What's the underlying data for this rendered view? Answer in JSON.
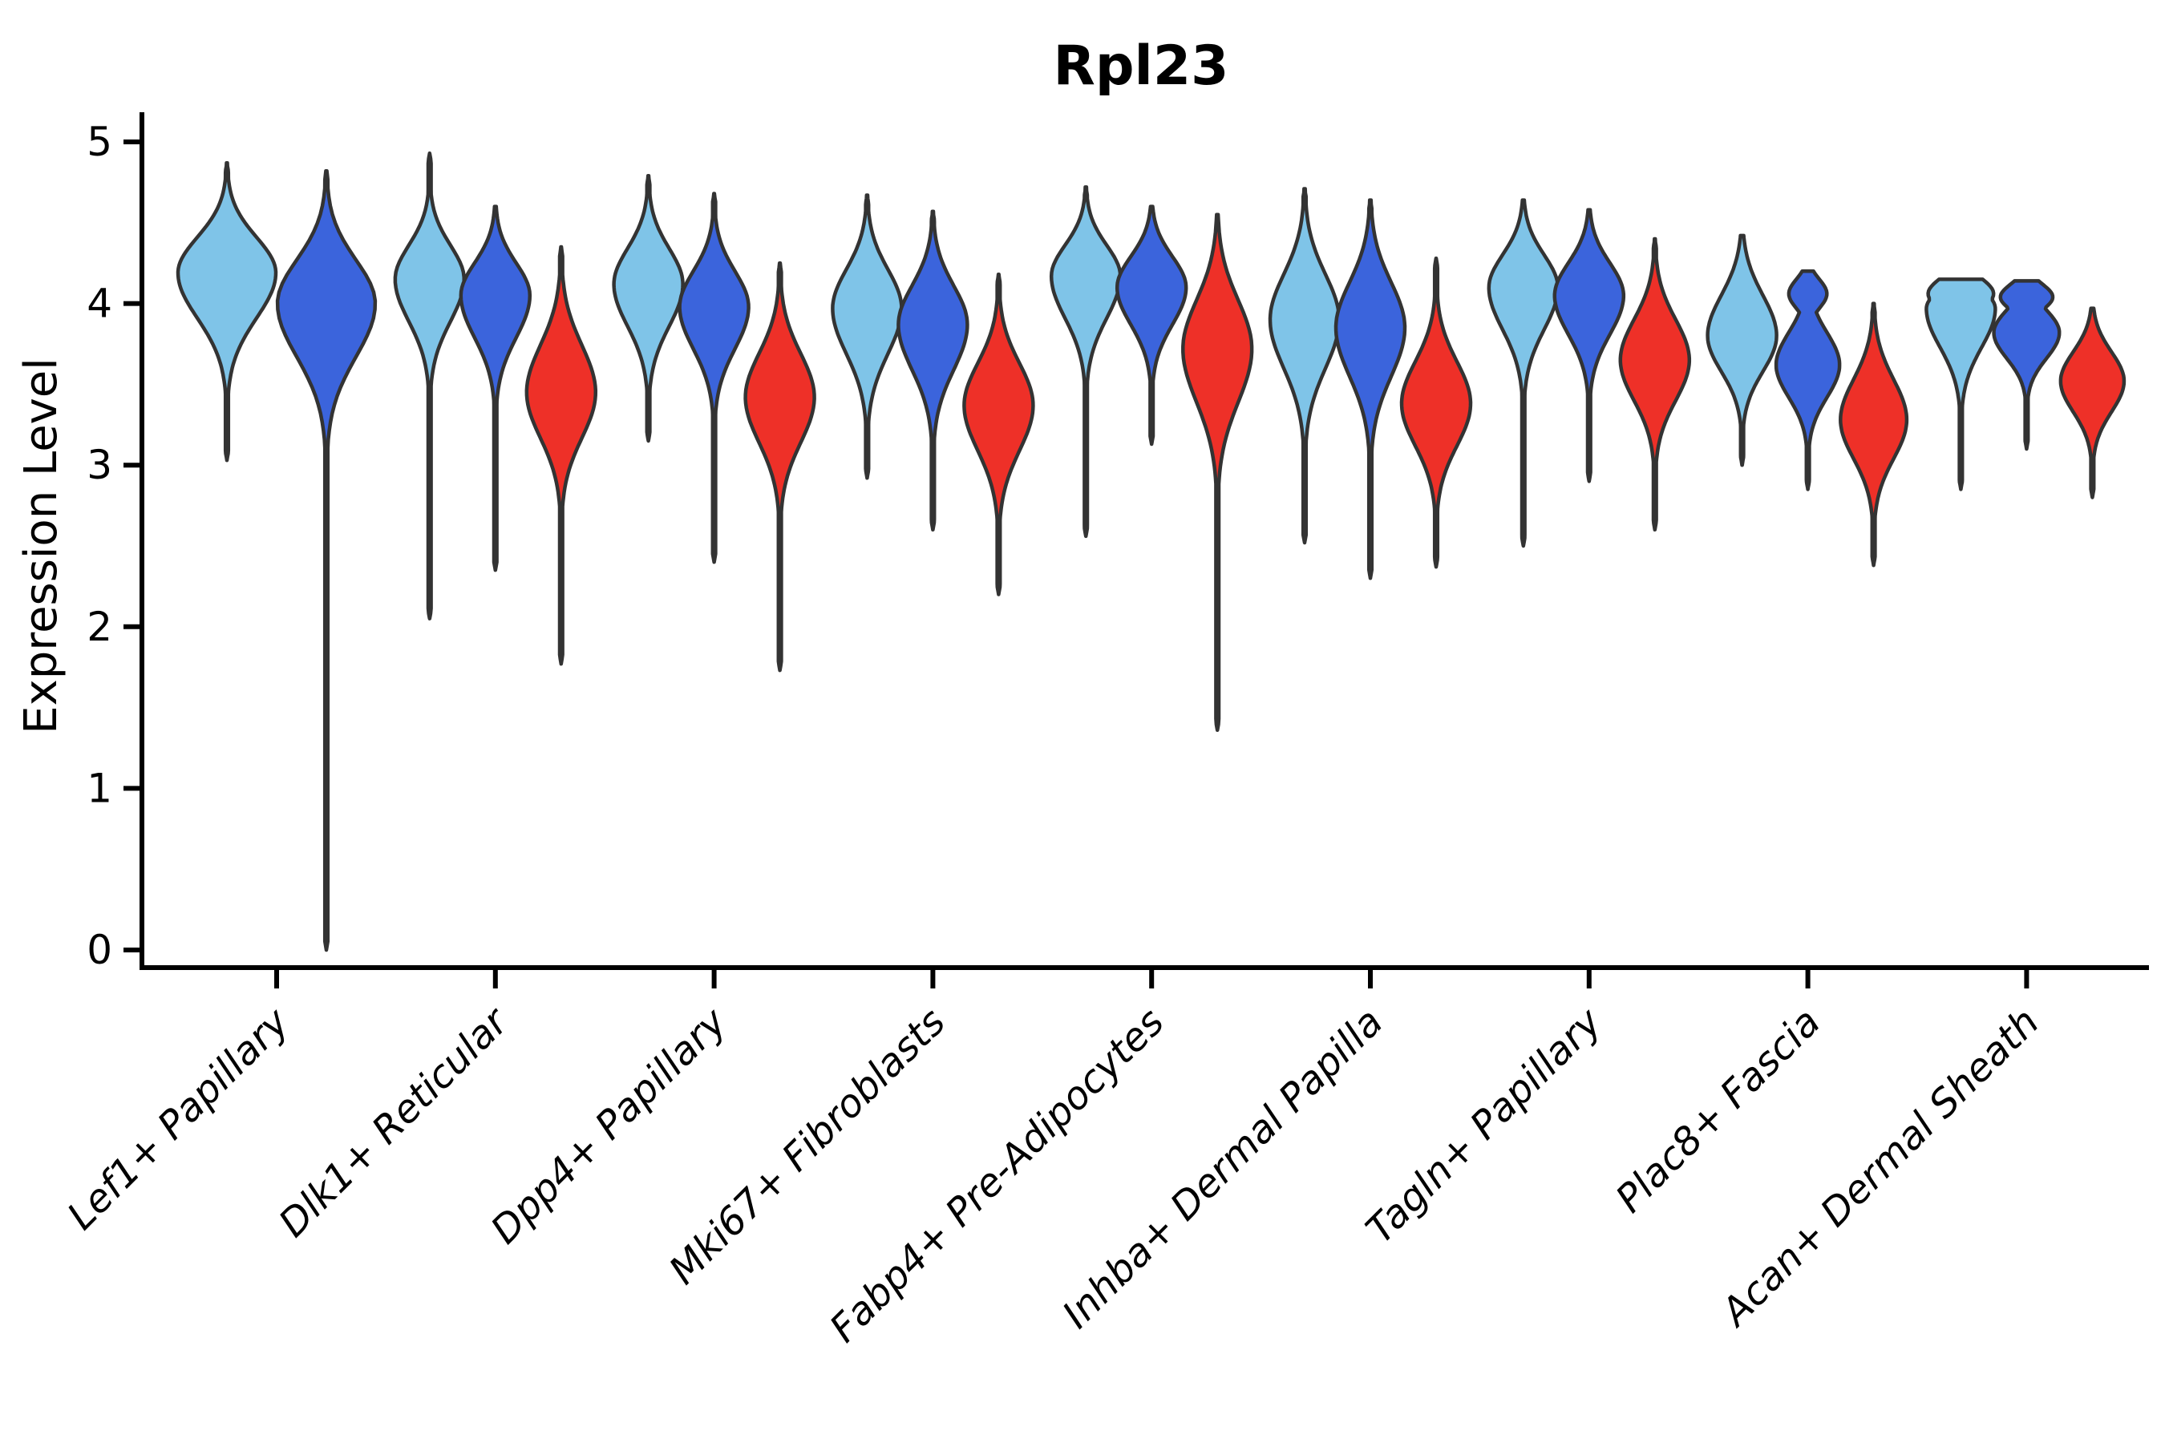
{
  "figure": {
    "title": "Rpl23",
    "ylabel": "Expression Level"
  },
  "colors": {
    "lightblue": "#7FC4E8",
    "darkblue": "#3B64DC",
    "red": "#EE3028",
    "outline": "#333333",
    "axis": "#000000",
    "background": "#ffffff"
  },
  "chart_data": {
    "type": "violin",
    "title": "Rpl23",
    "ylabel": "Expression Level",
    "xlabel": "",
    "grid": false,
    "legend": "none",
    "yticks": [
      0,
      1,
      2,
      3,
      4,
      5
    ],
    "ylim": [
      -0.1,
      5.2
    ],
    "categories": [
      "Lef1+ Papillary",
      "Dlk1+ Reticular",
      "Dpp4+ Papillary",
      "Mki67+ Fibroblasts",
      "Fabp4+ Pre-Adipocytes",
      "Inhba+ Dermal Papilla",
      "Tagln+ Papillary",
      "Plac8+ Fascia",
      "Acan+ Dermal Sheath"
    ],
    "series": [
      "lightblue",
      "darkblue",
      "red"
    ],
    "violins": [
      {
        "category": "Lef1+ Papillary",
        "series": "lightblue",
        "min": 3.03,
        "max": 4.87,
        "peak": 4.19,
        "sigma_up": 0.22,
        "sigma_down": 0.28,
        "rel_width": 1.0
      },
      {
        "category": "Lef1+ Papillary",
        "series": "darkblue",
        "min": 0.0,
        "max": 4.82,
        "peak": 4.0,
        "sigma_up": 0.27,
        "sigma_down": 0.33,
        "rel_width": 1.0
      },
      {
        "category": "Dlk1+ Reticular",
        "series": "lightblue",
        "min": 2.05,
        "max": 4.93,
        "peak": 4.15,
        "sigma_up": 0.21,
        "sigma_down": 0.26,
        "rel_width": 1.0
      },
      {
        "category": "Dlk1+ Reticular",
        "series": "darkblue",
        "min": 2.35,
        "max": 4.6,
        "peak": 4.05,
        "sigma_up": 0.2,
        "sigma_down": 0.26,
        "rel_width": 1.0
      },
      {
        "category": "Dlk1+ Reticular",
        "series": "red",
        "min": 1.77,
        "max": 4.35,
        "peak": 3.45,
        "sigma_up": 0.29,
        "sigma_down": 0.28,
        "rel_width": 1.0
      },
      {
        "category": "Dpp4+ Papillary",
        "series": "lightblue",
        "min": 3.15,
        "max": 4.79,
        "peak": 4.12,
        "sigma_up": 0.22,
        "sigma_down": 0.26,
        "rel_width": 1.0
      },
      {
        "category": "Dpp4+ Papillary",
        "series": "darkblue",
        "min": 2.4,
        "max": 4.68,
        "peak": 3.98,
        "sigma_up": 0.22,
        "sigma_down": 0.26,
        "rel_width": 1.0
      },
      {
        "category": "Dpp4+ Papillary",
        "series": "red",
        "min": 1.73,
        "max": 4.25,
        "peak": 3.42,
        "sigma_up": 0.27,
        "sigma_down": 0.28,
        "rel_width": 1.0
      },
      {
        "category": "Mki67+ Fibroblasts",
        "series": "lightblue",
        "min": 2.92,
        "max": 4.67,
        "peak": 3.97,
        "sigma_up": 0.24,
        "sigma_down": 0.28,
        "rel_width": 1.0
      },
      {
        "category": "Mki67+ Fibroblasts",
        "series": "darkblue",
        "min": 2.6,
        "max": 4.57,
        "peak": 3.87,
        "sigma_up": 0.24,
        "sigma_down": 0.28,
        "rel_width": 1.0
      },
      {
        "category": "Mki67+ Fibroblasts",
        "series": "red",
        "min": 2.2,
        "max": 4.18,
        "peak": 3.37,
        "sigma_up": 0.26,
        "sigma_down": 0.28,
        "rel_width": 1.0
      },
      {
        "category": "Fabp4+ Pre-Adipocytes",
        "series": "lightblue",
        "min": 2.56,
        "max": 4.72,
        "peak": 4.17,
        "sigma_up": 0.19,
        "sigma_down": 0.26,
        "rel_width": 1.0
      },
      {
        "category": "Fabp4+ Pre-Adipocytes",
        "series": "darkblue",
        "min": 3.13,
        "max": 4.6,
        "peak": 4.1,
        "sigma_up": 0.19,
        "sigma_down": 0.23,
        "rel_width": 1.0
      },
      {
        "category": "Fabp4+ Pre-Adipocytes",
        "series": "red",
        "min": 1.36,
        "max": 4.55,
        "peak": 3.72,
        "sigma_up": 0.3,
        "sigma_down": 0.33,
        "rel_width": 1.0
      },
      {
        "category": "Inhba+ Dermal Papilla",
        "series": "lightblue",
        "min": 2.52,
        "max": 4.71,
        "peak": 3.9,
        "sigma_up": 0.28,
        "sigma_down": 0.3,
        "rel_width": 1.0
      },
      {
        "category": "Inhba+ Dermal Papilla",
        "series": "darkblue",
        "min": 2.3,
        "max": 4.64,
        "peak": 3.85,
        "sigma_up": 0.28,
        "sigma_down": 0.3,
        "rel_width": 1.0
      },
      {
        "category": "Inhba+ Dermal Papilla",
        "series": "red",
        "min": 2.37,
        "max": 4.28,
        "peak": 3.38,
        "sigma_up": 0.26,
        "sigma_down": 0.26,
        "rel_width": 1.0
      },
      {
        "category": "Tagln+ Papillary",
        "series": "lightblue",
        "min": 2.5,
        "max": 4.64,
        "peak": 4.1,
        "sigma_up": 0.2,
        "sigma_down": 0.26,
        "rel_width": 1.0
      },
      {
        "category": "Tagln+ Papillary",
        "series": "darkblue",
        "min": 2.9,
        "max": 4.58,
        "peak": 4.05,
        "sigma_up": 0.2,
        "sigma_down": 0.24,
        "rel_width": 1.0
      },
      {
        "category": "Tagln+ Papillary",
        "series": "red",
        "min": 2.6,
        "max": 4.4,
        "peak": 3.65,
        "sigma_up": 0.25,
        "sigma_down": 0.25,
        "rel_width": 1.0
      },
      {
        "category": "Plac8+ Fascia",
        "series": "lightblue",
        "min": 3.0,
        "max": 4.42,
        "peak": 3.8,
        "sigma_up": 0.25,
        "sigma_down": 0.22,
        "rel_width": 1.0
      },
      {
        "category": "Plac8+ Fascia",
        "series": "darkblue",
        "min": 2.85,
        "max": 4.2,
        "peak": 3.62,
        "sigma_up": 0.2,
        "sigma_down": 0.2,
        "rel_width": 0.92,
        "bumps": [
          {
            "at": 4.06,
            "sigma": 0.09,
            "scale": 0.6
          }
        ]
      },
      {
        "category": "Plac8+ Fascia",
        "series": "red",
        "min": 2.38,
        "max": 4.0,
        "peak": 3.28,
        "sigma_up": 0.25,
        "sigma_down": 0.24,
        "rel_width": 0.96
      },
      {
        "category": "Acan+ Dermal Sheath",
        "series": "lightblue",
        "min": 2.85,
        "max": 4.15,
        "peak": 3.97,
        "sigma_up": 0.12,
        "sigma_down": 0.24,
        "rel_width": 1.0,
        "bumps": [
          {
            "at": 4.06,
            "sigma": 0.1,
            "scale": 0.95
          }
        ]
      },
      {
        "category": "Acan+ Dermal Sheath",
        "series": "darkblue",
        "min": 3.1,
        "max": 4.14,
        "peak": 3.82,
        "sigma_up": 0.14,
        "sigma_down": 0.16,
        "rel_width": 0.95,
        "bumps": [
          {
            "at": 4.04,
            "sigma": 0.08,
            "scale": 0.8
          }
        ]
      },
      {
        "category": "Acan+ Dermal Sheath",
        "series": "red",
        "min": 2.8,
        "max": 3.97,
        "peak": 3.52,
        "sigma_up": 0.18,
        "sigma_down": 0.19,
        "rel_width": 0.92
      }
    ]
  }
}
